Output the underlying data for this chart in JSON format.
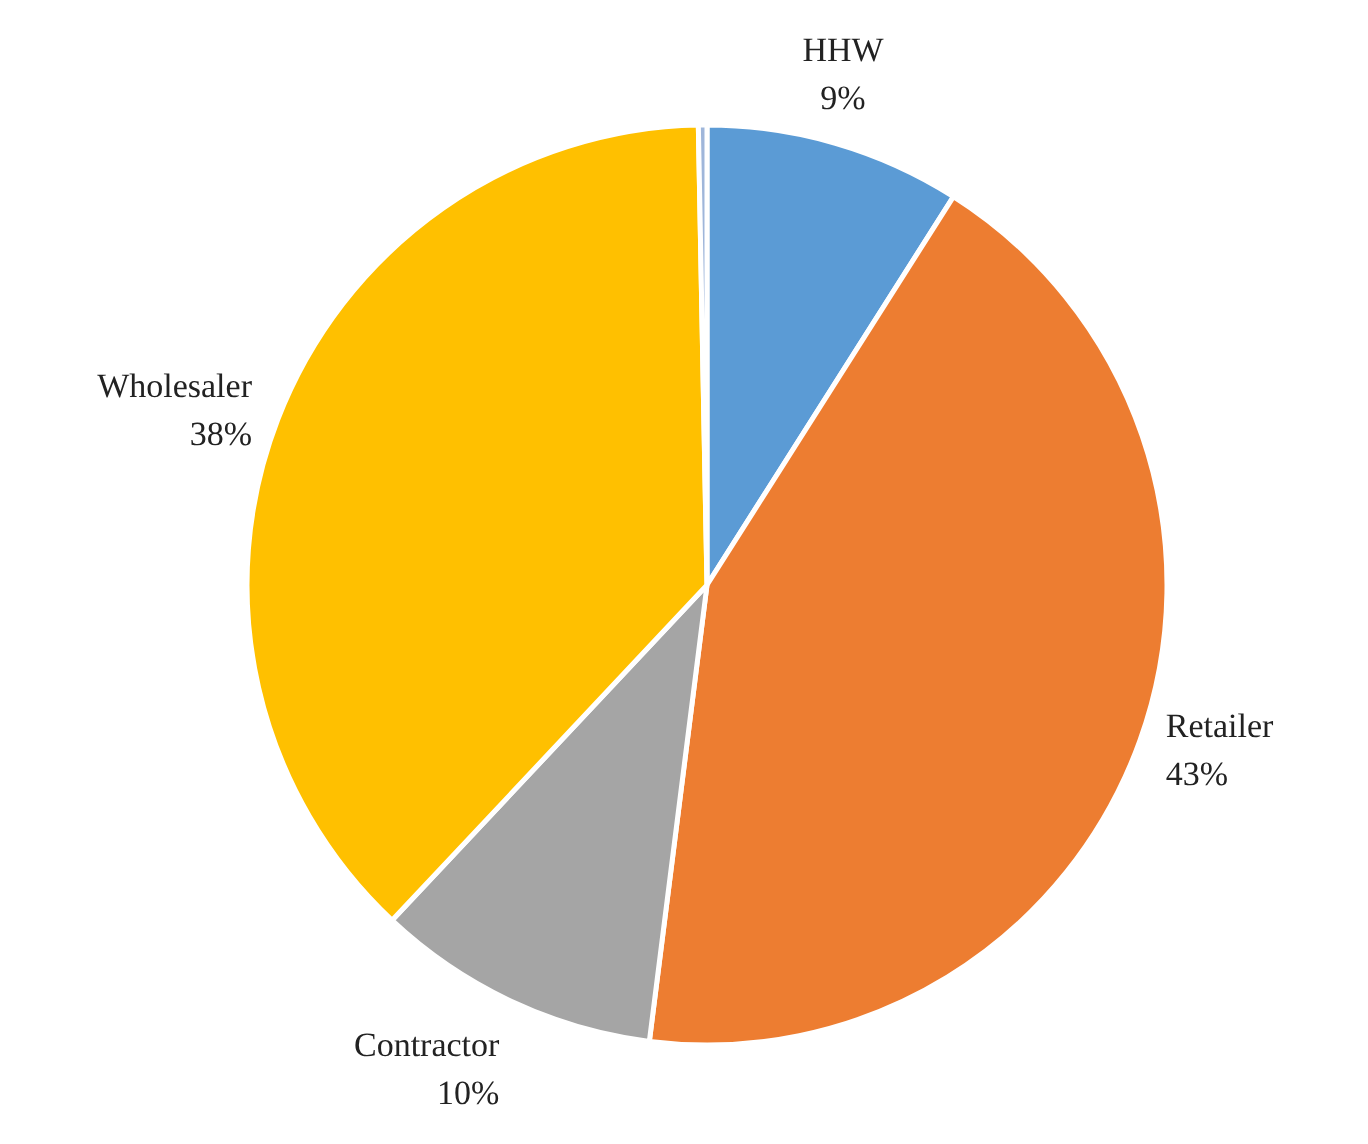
{
  "chart_data": {
    "type": "pie",
    "categories": [
      "HHW",
      "Retailer",
      "Contractor",
      "Wholesaler",
      null
    ],
    "values": [
      9,
      43,
      10,
      37.7,
      0.3
    ],
    "value_labels": [
      "9%",
      "43%",
      "10%",
      "38%",
      null
    ],
    "colors": [
      "#5b9bd5",
      "#ed7d31",
      "#a5a5a5",
      "#ffc000",
      "#9fb6da"
    ]
  }
}
